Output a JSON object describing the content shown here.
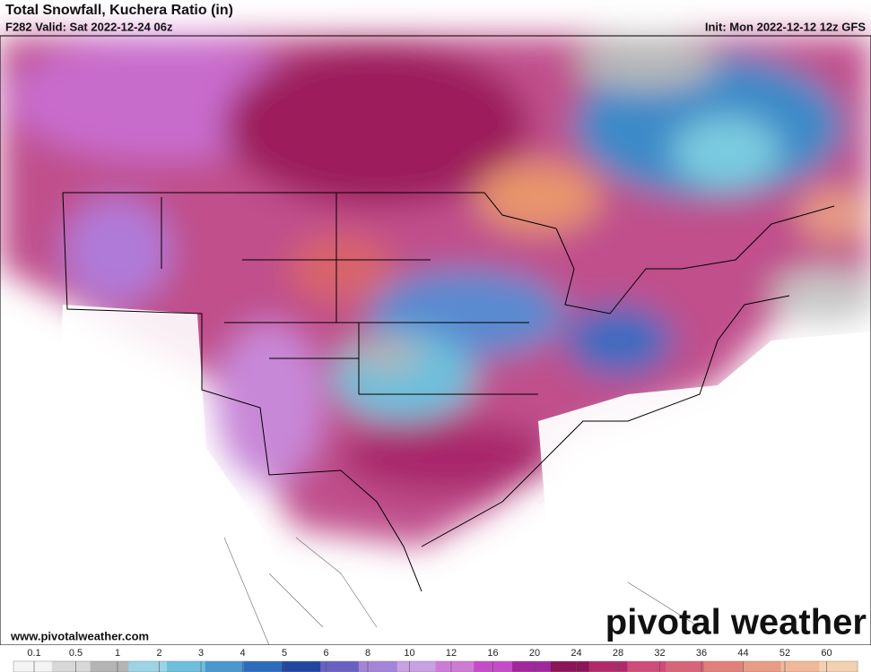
{
  "header": {
    "title": "Total Snowfall, Kuchera Ratio (in)",
    "valid": "F282 Valid: Sat 2022-12-24 06z",
    "init": "Init: Mon 2022-12-12 12z GFS"
  },
  "map": {
    "website": "www.pivotalweather.com",
    "watermark": "pivotal weather"
  },
  "legend": {
    "labels": [
      "0.1",
      "0.5",
      "1",
      "2",
      "3",
      "4",
      "5",
      "6",
      "8",
      "10",
      "12",
      "16",
      "20",
      "24",
      "28",
      "32",
      "36",
      "44",
      "52",
      "60"
    ],
    "colors": [
      "#f4f4f4",
      "#d8d8d8",
      "#b4b4b4",
      "#9ad4e6",
      "#6cc0dc",
      "#4a98d0",
      "#2c6cbc",
      "#2046a0",
      "#6a60c4",
      "#a484d8",
      "#c8a0e4",
      "#d07ad8",
      "#c44cc8",
      "#a0289c",
      "#8c1458",
      "#b02a6a",
      "#d04a7a",
      "#d8647a",
      "#e08078",
      "#e89c84",
      "#f0b898",
      "#f4d0b0"
    ]
  }
}
